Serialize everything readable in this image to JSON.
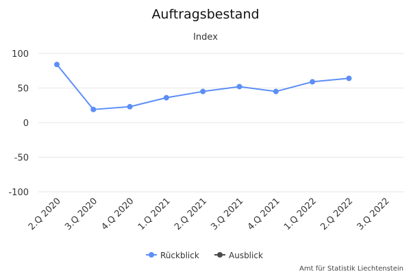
{
  "chart_data": {
    "type": "line",
    "title": "Auftragsbestand",
    "subtitle": "Index",
    "categories": [
      "2.Q 2020",
      "3.Q 2020",
      "4.Q 2020",
      "1.Q 2021",
      "2.Q 2021",
      "3.Q 2021",
      "4.Q 2021",
      "1.Q 2022",
      "2.Q 2022",
      "3.Q 2022"
    ],
    "y_ticks": [
      "100",
      "50",
      "0",
      "-50",
      "-100"
    ],
    "ylim": [
      -100,
      100
    ],
    "grid": true,
    "legend_position": "bottom-center",
    "series": [
      {
        "name": "Rückblick",
        "color": "#5b8ef7",
        "values": [
          84,
          19,
          23,
          36,
          45,
          52,
          45,
          59,
          64,
          null
        ]
      },
      {
        "name": "Ausblick",
        "color": "#4a4a4a",
        "values": [
          null,
          null,
          null,
          null,
          null,
          null,
          null,
          null,
          null,
          null
        ]
      }
    ],
    "credit": "Amt für Statistik Liechtenstein"
  }
}
